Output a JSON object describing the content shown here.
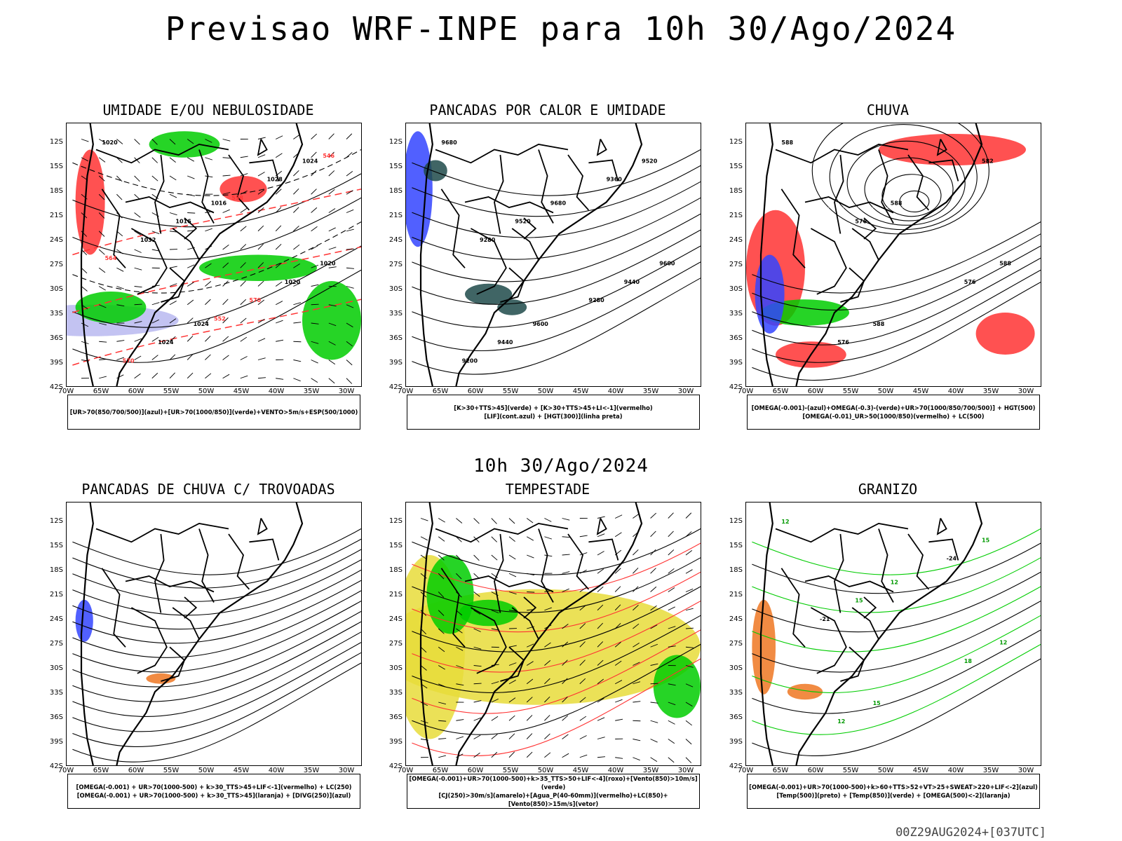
{
  "header": {
    "title": "Previsao WRF-INPE  para 10h 30/Ago/2024"
  },
  "subheader": {
    "title": "10h 30/Ago/2024"
  },
  "footer": {
    "run": "00Z29AUG2024+[037UTC]"
  },
  "axes": {
    "lat_labels": [
      "12S",
      "15S",
      "18S",
      "21S",
      "24S",
      "27S",
      "30S",
      "33S",
      "36S",
      "39S",
      "42S"
    ],
    "lon_labels": [
      "70W",
      "65W",
      "60W",
      "55W",
      "50W",
      "45W",
      "40W",
      "35W",
      "30W"
    ]
  },
  "colors": {
    "blue": "#3344ff",
    "green": "#00cc00",
    "red": "#ff3333",
    "orange": "#ee7722",
    "yellow": "#e8dc3a",
    "dark": "#1f4a4a",
    "lavender": "#b8b8f0"
  },
  "panels": [
    {
      "id": "umidade",
      "title": "UMIDADE E/OU NEBULOSIDADE",
      "legend": [
        "[UR>70(850/700/500)](azul)+[UR>70(1000/850)](verde)+VENTO>5m/s+ESP(500/1000)"
      ],
      "contours": [
        "1020",
        "1016",
        "1020",
        "1024",
        "1024",
        "1016",
        "1020",
        "1024",
        "1028",
        "1032",
        "570",
        "570",
        "558",
        "564",
        "552",
        "546"
      ]
    },
    {
      "id": "pancadas",
      "title": "PANCADAS POR CALOR E UMIDADE",
      "legend": [
        "[K>30+TTS>45](verde) + [K>30+TTS>45+LI<-1](vermelho)",
        "[LIF](cont.azul) + [HGT(300)](linha preta)"
      ],
      "contours": [
        "9680",
        "9680",
        "9600",
        "9600",
        "9520",
        "9520",
        "9440",
        "9440",
        "9360",
        "9280",
        "9280",
        "9200"
      ]
    },
    {
      "id": "chuva",
      "title": "CHUVA",
      "legend": [
        "[OMEGA(-0.001)-(azul)+OMEGA(-0.3)-(verde)+UR>70(1000/850/700/500)] + HGT(500)",
        "[OMEGA(-0.01)_UR>50(1000/850)(vermelho) + LC(500)"
      ],
      "contours": [
        "588",
        "588",
        "588",
        "588",
        "582",
        "576",
        "576",
        "576"
      ]
    },
    {
      "id": "trovoadas",
      "title": "PANCADAS DE CHUVA C/ TROVOADAS",
      "legend": [
        "[OMEGA(-0.001) + UR>70(1000-500) + k>30_TTS>45+LIF<-1](vermelho) + LC(250)",
        "[OMEGA(-0.001) + UR>70(1000-500) + k>30_TTS>45](laranja) + [DIVG(250)](azul)"
      ],
      "contours": []
    },
    {
      "id": "tempestade",
      "title": "TEMPESTADE",
      "legend": [
        "[OMEGA(-0.001)+UR>70(1000-500)+k>35_TTS>50+LIF<-4](roxo)+[Vento(850)>10m/s](verde)",
        "[CJ(250)>30m/s](amarelo)+[Agua_P(40-60mm)](vermelho)+LC(850)+[Vento(850)>15m/s](vetor)"
      ],
      "contours": []
    },
    {
      "id": "granizo",
      "title": "GRANIZO",
      "legend": [
        "[OMEGA(-0.001)+UR>70(1000-500)+k>60+TTS>52+VT>25+SWEAT>220+LIF<-2](azul)",
        "[Temp(500)](preto) + [Temp(850)](verde) + [OMEGA(500)<-2](laranja)"
      ],
      "contours": [
        "12",
        "12",
        "12",
        "15",
        "15",
        "15",
        "18",
        "12",
        "-24",
        "-21"
      ]
    }
  ]
}
